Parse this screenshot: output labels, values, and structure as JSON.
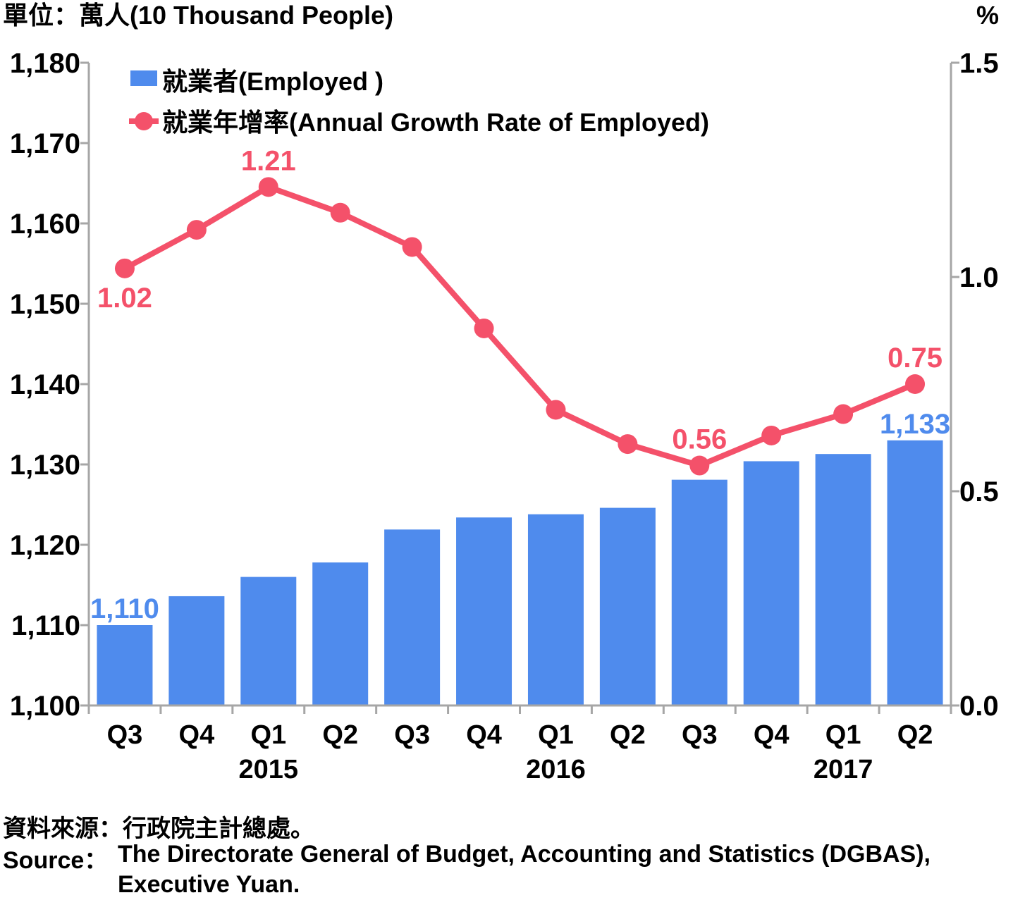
{
  "unit_left": "單位：萬人(10 Thousand People)",
  "unit_right": "%",
  "legend": {
    "bar": "就業者(Employed )",
    "line": "就業年增率(Annual Growth Rate of Employed)"
  },
  "source_zh": "資料來源：行政院主計總處。",
  "source_en_label": "Source：",
  "source_en_line1": "The Directorate General of Budget, Accounting and Statistics (DGBAS),",
  "source_en_line2": "Executive Yuan.",
  "colors": {
    "bar": "#4f8bed",
    "line": "#f4516a",
    "axis": "#a6a6a6"
  },
  "chart_data": {
    "type": "bar+line",
    "categories": [
      "Q3",
      "Q4",
      "Q1",
      "Q2",
      "Q3",
      "Q4",
      "Q1",
      "Q2",
      "Q3",
      "Q4",
      "Q1",
      "Q2"
    ],
    "years": [
      {
        "label": "2015",
        "category_index": 2
      },
      {
        "label": "2016",
        "category_index": 6
      },
      {
        "label": "2017",
        "category_index": 10
      }
    ],
    "series": [
      {
        "name": "就業者(Employed )",
        "type": "bar",
        "axis": "left",
        "values": [
          1110,
          1113.6,
          1116,
          1117.8,
          1121.9,
          1123.4,
          1123.8,
          1124.6,
          1128.1,
          1130.4,
          1131.3,
          1133
        ]
      },
      {
        "name": "就業年增率(Annual Growth Rate of Employed)",
        "type": "line",
        "axis": "right",
        "values": [
          1.02,
          1.11,
          1.21,
          1.15,
          1.07,
          0.88,
          0.69,
          0.61,
          0.56,
          0.63,
          0.68,
          0.75
        ]
      }
    ],
    "bar_labels": [
      {
        "index": 0,
        "text": "1,110"
      },
      {
        "index": 11,
        "text": "1,133"
      }
    ],
    "line_labels": [
      {
        "index": 0,
        "text": "1.02",
        "pos": "below"
      },
      {
        "index": 2,
        "text": "1.21",
        "pos": "above"
      },
      {
        "index": 8,
        "text": "0.56",
        "pos": "above"
      },
      {
        "index": 11,
        "text": "0.75",
        "pos": "above"
      }
    ],
    "y_left": {
      "min": 1100,
      "max": 1180,
      "ticks": [
        1100,
        1110,
        1120,
        1130,
        1140,
        1150,
        1160,
        1170,
        1180
      ],
      "tick_labels": [
        "1,100",
        "1,110",
        "1,120",
        "1,130",
        "1,140",
        "1,150",
        "1,160",
        "1,170",
        "1,180"
      ]
    },
    "y_right": {
      "min": 0,
      "max": 1.5,
      "ticks": [
        0,
        0.5,
        1.0,
        1.5
      ],
      "tick_labels": [
        "0.0",
        "0.5",
        "1.0",
        "1.5"
      ]
    },
    "grid": false,
    "legend_position": "top-left"
  }
}
